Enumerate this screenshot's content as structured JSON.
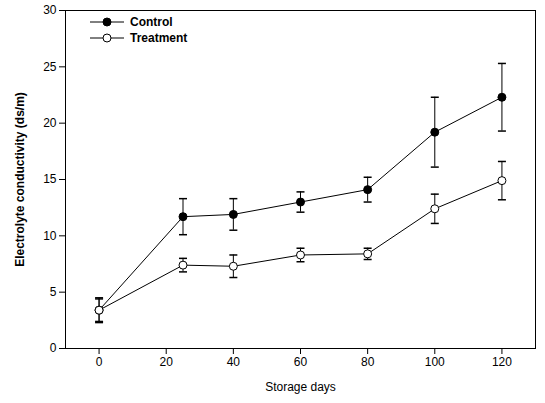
{
  "chart_data": {
    "type": "line",
    "x_label": "Storage days",
    "y_label": "Electrolyte conductivity (ds/m)",
    "x": [
      0,
      25,
      40,
      60,
      80,
      100,
      120
    ],
    "series": [
      {
        "name": "Control",
        "color": "#000000",
        "marker": "circle",
        "values": [
          3.4,
          11.7,
          11.9,
          13.0,
          14.1,
          19.2,
          22.3
        ],
        "errors": [
          1.1,
          1.6,
          1.4,
          0.9,
          1.1,
          3.1,
          3.0
        ]
      },
      {
        "name": "Treatment",
        "color": "#000000",
        "marker": "open_circle",
        "values": [
          3.4,
          7.4,
          7.3,
          8.3,
          8.4,
          12.4,
          14.9
        ],
        "errors": [
          1.0,
          0.6,
          1.0,
          0.6,
          0.5,
          1.3,
          1.7
        ]
      }
    ],
    "xlim": [
      -10,
      130
    ],
    "xticks": [
      0,
      20,
      40,
      60,
      80,
      100,
      120
    ],
    "ylim": [
      0,
      30
    ],
    "yticks": [
      0,
      5,
      10,
      15,
      20,
      25,
      30
    ],
    "grid": false,
    "legend": "top-left"
  }
}
